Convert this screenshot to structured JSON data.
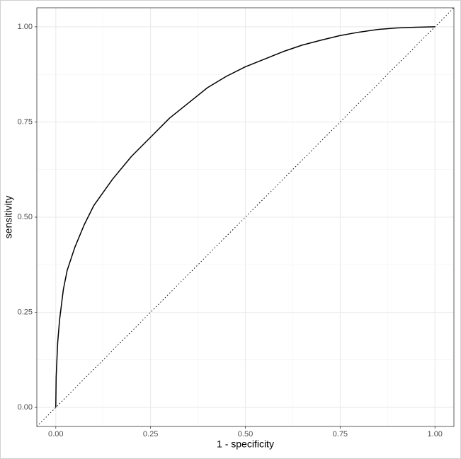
{
  "chart_data": {
    "type": "line",
    "x_label": "1 - specificity",
    "y_label": "sensitivity",
    "xlim": [
      -0.05,
      1.05
    ],
    "ylim": [
      -0.05,
      1.05
    ],
    "xticks": [
      {
        "value": 0,
        "label": "0.00"
      },
      {
        "value": 0.25,
        "label": "0.25"
      },
      {
        "value": 0.5,
        "label": "0.50"
      },
      {
        "value": 0.75,
        "label": "0.75"
      },
      {
        "value": 1,
        "label": "1.00"
      }
    ],
    "yticks": [
      {
        "value": 0,
        "label": "0.00"
      },
      {
        "value": 0.25,
        "label": "0.25"
      },
      {
        "value": 0.5,
        "label": "0.50"
      },
      {
        "value": 0.75,
        "label": "0.75"
      },
      {
        "value": 1,
        "label": "1.00"
      }
    ],
    "minor_grid": [
      0.125,
      0.375,
      0.625,
      0.875
    ],
    "grid": true,
    "series": [
      {
        "color": "#000000",
        "x": [
          0,
          0.001,
          0.005,
          0.01,
          0.02,
          0.03,
          0.05,
          0.075,
          0.1,
          0.15,
          0.2,
          0.25,
          0.3,
          0.35,
          0.4,
          0.45,
          0.5,
          0.55,
          0.6,
          0.65,
          0.7,
          0.75,
          0.8,
          0.85,
          0.9,
          0.95,
          1
        ],
        "values": [
          0,
          0.08,
          0.17,
          0.23,
          0.31,
          0.36,
          0.42,
          0.48,
          0.53,
          0.6,
          0.66,
          0.71,
          0.76,
          0.8,
          0.84,
          0.87,
          0.895,
          0.915,
          0.935,
          0.952,
          0.965,
          0.977,
          0.986,
          0.993,
          0.997,
          0.999,
          1
        ]
      }
    ],
    "reference_line": {
      "slope": 1,
      "intercept": 0,
      "color": "#000000"
    }
  }
}
